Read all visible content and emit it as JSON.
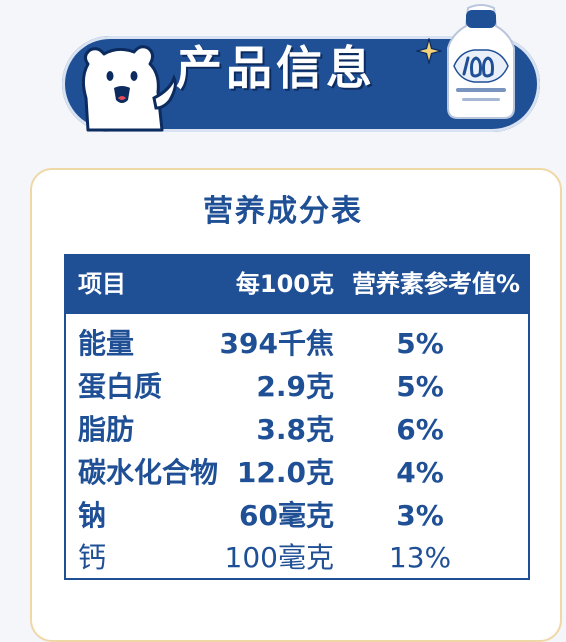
{
  "header": {
    "title": "产品信息"
  },
  "table": {
    "title": "营养成分表",
    "columns": [
      "项目",
      "每100克",
      "营养素参考值%"
    ],
    "rows": [
      {
        "name": "能量",
        "value": "394千焦",
        "nrv": "5%"
      },
      {
        "name": "蛋白质",
        "value": "2.9克",
        "nrv": "5%"
      },
      {
        "name": "脂肪",
        "value": "3.8克",
        "nrv": "6%"
      },
      {
        "name": "碳水化合物",
        "value": "12.0克",
        "nrv": "4%"
      },
      {
        "name": "钠",
        "value": "60毫克",
        "nrv": "3%"
      },
      {
        "name": "钙",
        "value": "100毫克",
        "nrv": "13%"
      }
    ]
  },
  "colors": {
    "brand_blue": "#1f4f95",
    "card_border": "#efd7a6"
  },
  "icons": [
    "polar-bear-icon",
    "sparkle-icon",
    "yogurt-bottle-icon"
  ]
}
